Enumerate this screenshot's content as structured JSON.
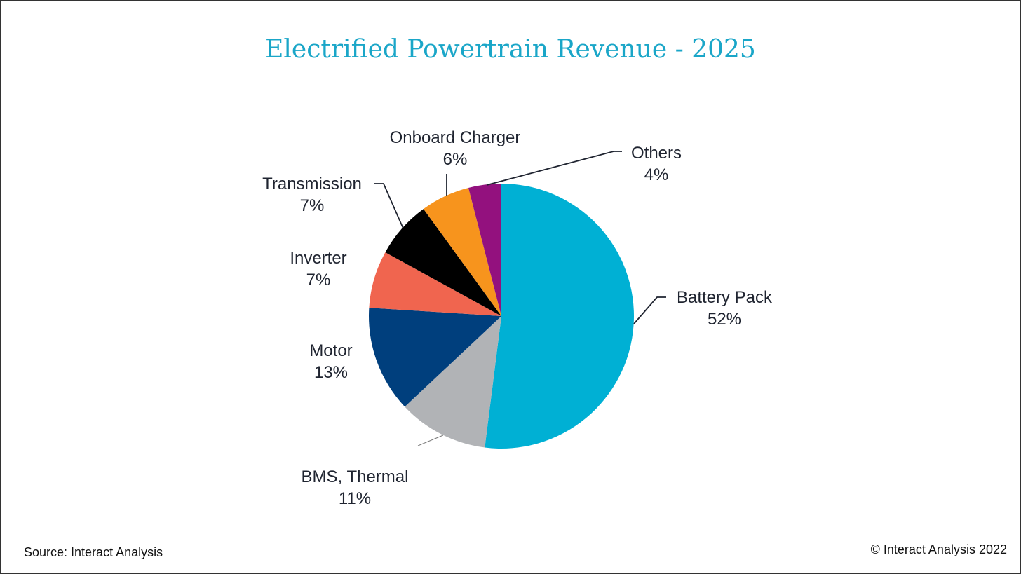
{
  "chart_data": {
    "type": "pie",
    "title": "Electrified Powertrain Revenue - 2025",
    "slices": [
      {
        "label": "Battery Pack",
        "value": 52,
        "value_label": "52%",
        "color": "#00b0d4"
      },
      {
        "label": "BMS, Thermal",
        "value": 11,
        "value_label": "11%",
        "color": "#b1b3b6"
      },
      {
        "label": "Motor",
        "value": 13,
        "value_label": "13%",
        "color": "#003f7d"
      },
      {
        "label": "Inverter",
        "value": 7,
        "value_label": "7%",
        "color": "#f0654f"
      },
      {
        "label": "Transmission",
        "value": 7,
        "value_label": "7%",
        "color": "#000000"
      },
      {
        "label": "Onboard Charger",
        "value": 6,
        "value_label": "6%",
        "color": "#f7941d"
      },
      {
        "label": "Others",
        "value": 4,
        "value_label": "4%",
        "color": "#93117e"
      }
    ],
    "start_angle": "12 o'clock",
    "direction": "clockwise",
    "legend": "none"
  },
  "footer": {
    "source": "Source: Interact Analysis",
    "copyright": "© Interact Analysis 2022"
  }
}
